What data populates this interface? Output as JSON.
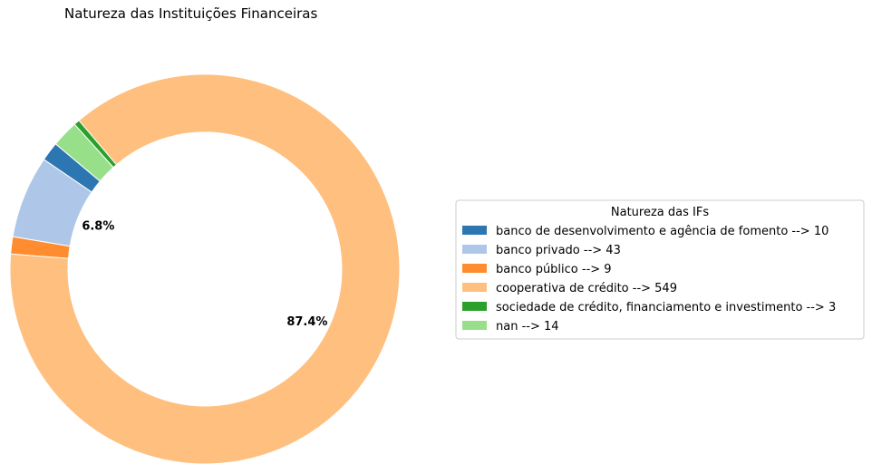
{
  "chart_data": {
    "type": "pie",
    "style": "donut",
    "title": "Natureza das Instituições Financeiras",
    "categories": [
      "banco de desenvolvimento e agência de fomento",
      "banco privado",
      "banco público",
      "cooperativa de crédito",
      "sociedade de crédito, financiamento e investimento",
      "nan"
    ],
    "values": [
      10,
      43,
      9,
      549,
      3,
      14
    ],
    "colors": [
      "#2c77b1",
      "#aec7e8",
      "#ff8c2e",
      "#ffbf7f",
      "#2ca02c",
      "#98df8a"
    ],
    "percent_labels": [
      {
        "category": "banco privado",
        "text": "6.8%"
      },
      {
        "category": "cooperativa de crédito",
        "text": "87.4%"
      }
    ],
    "legend": {
      "title": "Natureza das IFs",
      "placement": "center-right",
      "entries": [
        "banco de desenvolvimento e agência de fomento --> 10",
        "banco privado --> 43",
        "banco público --> 9",
        "cooperativa de crédito --> 549",
        "sociedade de crédito, financiamento e investimento --> 3",
        "nan --> 14"
      ]
    }
  }
}
